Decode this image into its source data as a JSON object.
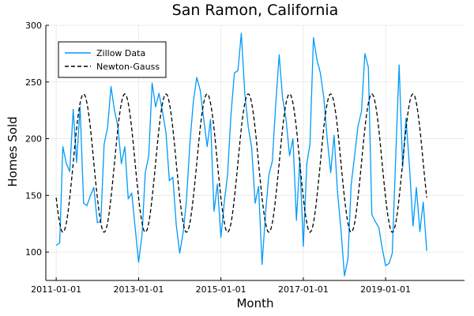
{
  "chart_data": {
    "type": "line",
    "title": "San Ramon, California",
    "xlabel": "Month",
    "ylabel": "Homes Sold",
    "xlim": [
      "2010-10-01",
      "2020-12-01"
    ],
    "ylim": [
      75,
      300
    ],
    "x_ticks": [
      {
        "date": "2011-01-01",
        "label": "2011-01-01"
      },
      {
        "date": "2013-01-01",
        "label": "2013-01-01"
      },
      {
        "date": "2015-01-01",
        "label": "2015-01-01"
      },
      {
        "date": "2017-01-01",
        "label": "2017-01-01"
      },
      {
        "date": "2019-01-01",
        "label": "2019-01-01"
      }
    ],
    "y_ticks": [
      100,
      150,
      200,
      250,
      300
    ],
    "grid": true,
    "legend": {
      "placement": "top-left"
    },
    "series": [
      {
        "name": "Zillow Data",
        "color": "#009af9",
        "style": "solid",
        "points": [
          [
            "2011-01-01",
            106
          ],
          [
            "2011-02-01",
            108
          ],
          [
            "2011-03-01",
            193
          ],
          [
            "2011-04-01",
            178
          ],
          [
            "2011-05-01",
            171
          ],
          [
            "2011-06-01",
            226
          ],
          [
            "2011-07-01",
            179
          ],
          [
            "2011-08-01",
            228
          ],
          [
            "2011-09-01",
            143
          ],
          [
            "2011-10-01",
            141
          ],
          [
            "2011-11-01",
            150
          ],
          [
            "2011-12-01",
            157
          ],
          [
            "2012-01-01",
            126
          ],
          [
            "2012-02-01",
            127
          ],
          [
            "2012-03-01",
            195
          ],
          [
            "2012-04-01",
            210
          ],
          [
            "2012-05-01",
            246
          ],
          [
            "2012-06-01",
            225
          ],
          [
            "2012-07-01",
            211
          ],
          [
            "2012-08-01",
            178
          ],
          [
            "2012-09-01",
            193
          ],
          [
            "2012-10-01",
            147
          ],
          [
            "2012-11-01",
            152
          ],
          [
            "2012-12-01",
            122
          ],
          [
            "2013-01-01",
            91
          ],
          [
            "2013-02-01",
            116
          ],
          [
            "2013-03-01",
            170
          ],
          [
            "2013-04-01",
            185
          ],
          [
            "2013-05-01",
            249
          ],
          [
            "2013-06-01",
            228
          ],
          [
            "2013-07-01",
            240
          ],
          [
            "2013-08-01",
            224
          ],
          [
            "2013-09-01",
            205
          ],
          [
            "2013-10-01",
            163
          ],
          [
            "2013-11-01",
            166
          ],
          [
            "2013-12-01",
            124
          ],
          [
            "2014-01-01",
            99
          ],
          [
            "2014-02-01",
            118
          ],
          [
            "2014-03-01",
            145
          ],
          [
            "2014-04-01",
            196
          ],
          [
            "2014-05-01",
            232
          ],
          [
            "2014-06-01",
            254
          ],
          [
            "2014-07-01",
            243
          ],
          [
            "2014-08-01",
            218
          ],
          [
            "2014-09-01",
            193
          ],
          [
            "2014-10-01",
            217
          ],
          [
            "2014-11-01",
            136
          ],
          [
            "2014-12-01",
            160
          ],
          [
            "2015-01-01",
            113
          ],
          [
            "2015-02-01",
            145
          ],
          [
            "2015-03-01",
            168
          ],
          [
            "2015-04-01",
            222
          ],
          [
            "2015-05-01",
            258
          ],
          [
            "2015-06-01",
            260
          ],
          [
            "2015-07-01",
            293
          ],
          [
            "2015-08-01",
            240
          ],
          [
            "2015-09-01",
            210
          ],
          [
            "2015-10-01",
            192
          ],
          [
            "2015-11-01",
            143
          ],
          [
            "2015-12-01",
            158
          ],
          [
            "2016-01-01",
            89
          ],
          [
            "2016-02-01",
            134
          ],
          [
            "2016-03-01",
            168
          ],
          [
            "2016-04-01",
            180
          ],
          [
            "2016-05-01",
            230
          ],
          [
            "2016-06-01",
            274
          ],
          [
            "2016-07-01",
            236
          ],
          [
            "2016-08-01",
            217
          ],
          [
            "2016-09-01",
            185
          ],
          [
            "2016-10-01",
            200
          ],
          [
            "2016-11-01",
            128
          ],
          [
            "2016-12-01",
            182
          ],
          [
            "2017-01-01",
            105
          ],
          [
            "2017-02-01",
            178
          ],
          [
            "2017-03-01",
            195
          ],
          [
            "2017-04-01",
            289
          ],
          [
            "2017-05-01",
            270
          ],
          [
            "2017-06-01",
            258
          ],
          [
            "2017-07-01",
            237
          ],
          [
            "2017-08-01",
            200
          ],
          [
            "2017-09-01",
            170
          ],
          [
            "2017-10-01",
            203
          ],
          [
            "2017-11-01",
            152
          ],
          [
            "2017-12-01",
            120
          ],
          [
            "2018-01-01",
            79
          ],
          [
            "2018-02-01",
            94
          ],
          [
            "2018-03-01",
            159
          ],
          [
            "2018-04-01",
            185
          ],
          [
            "2018-05-01",
            211
          ],
          [
            "2018-06-01",
            224
          ],
          [
            "2018-07-01",
            275
          ],
          [
            "2018-08-01",
            263
          ],
          [
            "2018-09-01",
            133
          ],
          [
            "2018-10-01",
            127
          ],
          [
            "2018-11-01",
            122
          ],
          [
            "2018-12-01",
            104
          ],
          [
            "2019-01-01",
            88
          ],
          [
            "2019-02-01",
            90
          ],
          [
            "2019-03-01",
            99
          ],
          [
            "2019-04-01",
            185
          ],
          [
            "2019-05-01",
            265
          ],
          [
            "2019-06-01",
            175
          ],
          [
            "2019-07-01",
            218
          ],
          [
            "2019-08-01",
            175
          ],
          [
            "2019-09-01",
            123
          ],
          [
            "2019-10-01",
            157
          ],
          [
            "2019-11-01",
            118
          ],
          [
            "2019-12-01",
            144
          ],
          [
            "2020-01-01",
            101
          ]
        ]
      },
      {
        "name": "Newton-Gauss",
        "color": "#000000",
        "style": "dashed",
        "model": {
          "type": "sinusoid",
          "mean": 178.5,
          "amplitude": 61,
          "period_months": 12,
          "trough_month": 2,
          "start": "2011-01-01",
          "end": "2020-01-01"
        }
      }
    ]
  }
}
